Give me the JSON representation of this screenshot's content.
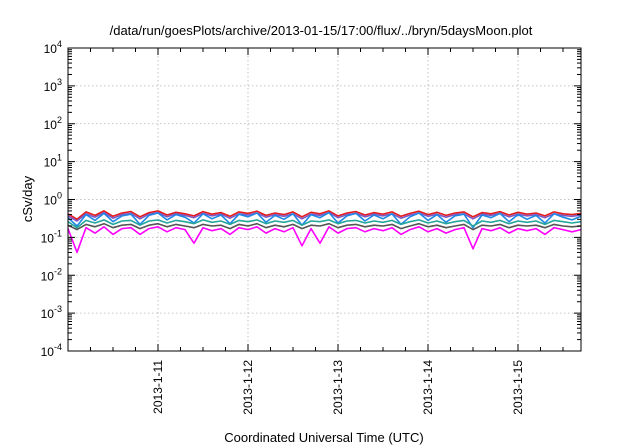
{
  "chart_data": {
    "type": "line",
    "title": "/data/run/goesPlots/archive/2013-01-15/17:00/flux/../bryn/5daysMoon.plot",
    "xlabel": "Coordinated Universal Time (UTC)",
    "ylabel": "cSv/day",
    "yscale": "log",
    "ylim": [
      0.0001,
      10000
    ],
    "xlim": [
      0,
      5.7
    ],
    "grid": true,
    "legend": "none",
    "y_ticks": [
      {
        "base": "10",
        "exp": "-4",
        "value": 0.0001
      },
      {
        "base": "10",
        "exp": "-3",
        "value": 0.001
      },
      {
        "base": "10",
        "exp": "-2",
        "value": 0.01
      },
      {
        "base": "10",
        "exp": "-1",
        "value": 0.1
      },
      {
        "base": "10",
        "exp": "0",
        "value": 1
      },
      {
        "base": "10",
        "exp": "1",
        "value": 10
      },
      {
        "base": "10",
        "exp": "2",
        "value": 100
      },
      {
        "base": "10",
        "exp": "3",
        "value": 1000
      },
      {
        "base": "10",
        "exp": "4",
        "value": 10000
      }
    ],
    "x_ticks": [
      {
        "label": "2013-1-11",
        "value": 1
      },
      {
        "label": "2013-1-12",
        "value": 2
      },
      {
        "label": "2013-1-13",
        "value": 3
      },
      {
        "label": "2013-1-14",
        "value": 4
      },
      {
        "label": "2013-1-15",
        "value": 5
      }
    ],
    "series": [
      {
        "color": "#e41a1c",
        "x": [
          0,
          0.1,
          0.2,
          0.3,
          0.4,
          0.5,
          0.6,
          0.7,
          0.8,
          0.9,
          1.0,
          1.1,
          1.2,
          1.3,
          1.4,
          1.5,
          1.6,
          1.7,
          1.8,
          1.9,
          2.0,
          2.1,
          2.2,
          2.3,
          2.4,
          2.5,
          2.6,
          2.7,
          2.8,
          2.9,
          3.0,
          3.1,
          3.2,
          3.3,
          3.4,
          3.5,
          3.6,
          3.7,
          3.8,
          3.9,
          4.0,
          4.1,
          4.2,
          4.3,
          4.4,
          4.5,
          4.6,
          4.7,
          4.8,
          4.9,
          5.0,
          5.1,
          5.2,
          5.3,
          5.4,
          5.5,
          5.6,
          5.7
        ],
        "y": [
          0.42,
          0.3,
          0.47,
          0.38,
          0.5,
          0.36,
          0.44,
          0.48,
          0.35,
          0.45,
          0.5,
          0.39,
          0.46,
          0.42,
          0.37,
          0.48,
          0.41,
          0.45,
          0.36,
          0.47,
          0.43,
          0.49,
          0.38,
          0.44,
          0.4,
          0.47,
          0.35,
          0.46,
          0.42,
          0.5,
          0.37,
          0.44,
          0.48,
          0.39,
          0.45,
          0.41,
          0.47,
          0.36,
          0.43,
          0.49,
          0.4,
          0.46,
          0.38,
          0.44,
          0.47,
          0.35,
          0.45,
          0.42,
          0.48,
          0.39,
          0.46,
          0.41,
          0.44,
          0.37,
          0.47,
          0.42,
          0.4,
          0.43
        ]
      },
      {
        "color": "#7e57c2",
        "x": [
          0,
          0.1,
          0.2,
          0.3,
          0.4,
          0.5,
          0.6,
          0.7,
          0.8,
          0.9,
          1.0,
          1.1,
          1.2,
          1.3,
          1.4,
          1.5,
          1.6,
          1.7,
          1.8,
          1.9,
          2.0,
          2.1,
          2.2,
          2.3,
          2.4,
          2.5,
          2.6,
          2.7,
          2.8,
          2.9,
          3.0,
          3.1,
          3.2,
          3.3,
          3.4,
          3.5,
          3.6,
          3.7,
          3.8,
          3.9,
          4.0,
          4.1,
          4.2,
          4.3,
          4.4,
          4.5,
          4.6,
          4.7,
          4.8,
          4.9,
          5.0,
          5.1,
          5.2,
          5.3,
          5.4,
          5.5,
          5.6,
          5.7
        ],
        "y": [
          0.37,
          0.27,
          0.42,
          0.34,
          0.45,
          0.32,
          0.4,
          0.43,
          0.31,
          0.41,
          0.45,
          0.35,
          0.42,
          0.38,
          0.33,
          0.43,
          0.37,
          0.41,
          0.32,
          0.42,
          0.39,
          0.44,
          0.34,
          0.4,
          0.36,
          0.42,
          0.31,
          0.41,
          0.38,
          0.45,
          0.33,
          0.4,
          0.43,
          0.35,
          0.41,
          0.37,
          0.42,
          0.32,
          0.39,
          0.44,
          0.36,
          0.41,
          0.34,
          0.4,
          0.42,
          0.31,
          0.41,
          0.38,
          0.43,
          0.35,
          0.41,
          0.37,
          0.4,
          0.33,
          0.42,
          0.38,
          0.36,
          0.39
        ]
      },
      {
        "color": "#1e88e5",
        "x": [
          0,
          0.1,
          0.2,
          0.3,
          0.4,
          0.5,
          0.6,
          0.7,
          0.8,
          0.9,
          1.0,
          1.1,
          1.2,
          1.3,
          1.4,
          1.5,
          1.6,
          1.7,
          1.8,
          1.9,
          2.0,
          2.1,
          2.2,
          2.3,
          2.4,
          2.5,
          2.6,
          2.7,
          2.8,
          2.9,
          3.0,
          3.1,
          3.2,
          3.3,
          3.4,
          3.5,
          3.6,
          3.7,
          3.8,
          3.9,
          4.0,
          4.1,
          4.2,
          4.3,
          4.4,
          4.5,
          4.6,
          4.7,
          4.8,
          4.9,
          5.0,
          5.1,
          5.2,
          5.3,
          5.4,
          5.5,
          5.6,
          5.7
        ],
        "y": [
          0.33,
          0.2,
          0.4,
          0.28,
          0.43,
          0.26,
          0.37,
          0.41,
          0.22,
          0.38,
          0.44,
          0.29,
          0.4,
          0.34,
          0.24,
          0.42,
          0.31,
          0.39,
          0.23,
          0.41,
          0.35,
          0.44,
          0.25,
          0.38,
          0.3,
          0.42,
          0.21,
          0.4,
          0.33,
          0.45,
          0.24,
          0.37,
          0.43,
          0.27,
          0.39,
          0.31,
          0.42,
          0.22,
          0.35,
          0.44,
          0.28,
          0.4,
          0.25,
          0.37,
          0.41,
          0.18,
          0.39,
          0.33,
          0.43,
          0.26,
          0.4,
          0.3,
          0.38,
          0.24,
          0.42,
          0.34,
          0.29,
          0.36
        ]
      },
      {
        "color": "#26a69a",
        "x": [
          0,
          0.1,
          0.2,
          0.3,
          0.4,
          0.5,
          0.6,
          0.7,
          0.8,
          0.9,
          1.0,
          1.1,
          1.2,
          1.3,
          1.4,
          1.5,
          1.6,
          1.7,
          1.8,
          1.9,
          2.0,
          2.1,
          2.2,
          2.3,
          2.4,
          2.5,
          2.6,
          2.7,
          2.8,
          2.9,
          3.0,
          3.1,
          3.2,
          3.3,
          3.4,
          3.5,
          3.6,
          3.7,
          3.8,
          3.9,
          4.0,
          4.1,
          4.2,
          4.3,
          4.4,
          4.5,
          4.6,
          4.7,
          4.8,
          4.9,
          5.0,
          5.1,
          5.2,
          5.3,
          5.4,
          5.5,
          5.6,
          5.7
        ],
        "y": [
          0.26,
          0.18,
          0.28,
          0.24,
          0.29,
          0.22,
          0.27,
          0.28,
          0.21,
          0.27,
          0.29,
          0.24,
          0.28,
          0.26,
          0.23,
          0.29,
          0.25,
          0.27,
          0.22,
          0.28,
          0.26,
          0.29,
          0.23,
          0.27,
          0.25,
          0.28,
          0.21,
          0.27,
          0.26,
          0.29,
          0.23,
          0.27,
          0.28,
          0.24,
          0.27,
          0.25,
          0.28,
          0.22,
          0.26,
          0.29,
          0.24,
          0.27,
          0.23,
          0.26,
          0.28,
          0.2,
          0.27,
          0.25,
          0.28,
          0.23,
          0.27,
          0.25,
          0.27,
          0.22,
          0.28,
          0.26,
          0.24,
          0.26
        ]
      },
      {
        "color": "#555555",
        "x": [
          0,
          0.1,
          0.2,
          0.3,
          0.4,
          0.5,
          0.6,
          0.7,
          0.8,
          0.9,
          1.0,
          1.1,
          1.2,
          1.3,
          1.4,
          1.5,
          1.6,
          1.7,
          1.8,
          1.9,
          2.0,
          2.1,
          2.2,
          2.3,
          2.4,
          2.5,
          2.6,
          2.7,
          2.8,
          2.9,
          3.0,
          3.1,
          3.2,
          3.3,
          3.4,
          3.5,
          3.6,
          3.7,
          3.8,
          3.9,
          4.0,
          4.1,
          4.2,
          4.3,
          4.4,
          4.5,
          4.6,
          4.7,
          4.8,
          4.9,
          5.0,
          5.1,
          5.2,
          5.3,
          5.4,
          5.5,
          5.6,
          5.7
        ],
        "y": [
          0.21,
          0.16,
          0.22,
          0.19,
          0.23,
          0.18,
          0.21,
          0.22,
          0.17,
          0.21,
          0.23,
          0.19,
          0.22,
          0.2,
          0.18,
          0.22,
          0.2,
          0.21,
          0.17,
          0.22,
          0.2,
          0.23,
          0.18,
          0.21,
          0.19,
          0.22,
          0.17,
          0.21,
          0.2,
          0.23,
          0.18,
          0.21,
          0.22,
          0.19,
          0.21,
          0.2,
          0.22,
          0.17,
          0.2,
          0.23,
          0.19,
          0.21,
          0.18,
          0.2,
          0.22,
          0.16,
          0.21,
          0.2,
          0.22,
          0.18,
          0.21,
          0.2,
          0.21,
          0.18,
          0.22,
          0.2,
          0.19,
          0.2
        ]
      },
      {
        "color": "#ff00ff",
        "x": [
          0,
          0.1,
          0.2,
          0.3,
          0.4,
          0.5,
          0.6,
          0.7,
          0.8,
          0.9,
          1.0,
          1.1,
          1.2,
          1.3,
          1.4,
          1.5,
          1.6,
          1.7,
          1.8,
          1.9,
          2.0,
          2.1,
          2.2,
          2.3,
          2.4,
          2.5,
          2.6,
          2.7,
          2.8,
          2.9,
          3.0,
          3.1,
          3.2,
          3.3,
          3.4,
          3.5,
          3.6,
          3.7,
          3.8,
          3.9,
          4.0,
          4.1,
          4.2,
          4.3,
          4.4,
          4.5,
          4.6,
          4.7,
          4.8,
          4.9,
          5.0,
          5.1,
          5.2,
          5.3,
          5.4,
          5.5,
          5.6,
          5.7
        ],
        "y": [
          0.17,
          0.04,
          0.18,
          0.13,
          0.19,
          0.12,
          0.17,
          0.18,
          0.12,
          0.17,
          0.19,
          0.14,
          0.18,
          0.16,
          0.07,
          0.18,
          0.15,
          0.17,
          0.12,
          0.18,
          0.16,
          0.19,
          0.13,
          0.17,
          0.14,
          0.18,
          0.06,
          0.17,
          0.07,
          0.19,
          0.13,
          0.17,
          0.18,
          0.14,
          0.17,
          0.15,
          0.18,
          0.12,
          0.16,
          0.19,
          0.14,
          0.17,
          0.13,
          0.16,
          0.18,
          0.05,
          0.17,
          0.15,
          0.18,
          0.13,
          0.17,
          0.15,
          0.17,
          0.12,
          0.18,
          0.16,
          0.14,
          0.16
        ]
      }
    ]
  }
}
